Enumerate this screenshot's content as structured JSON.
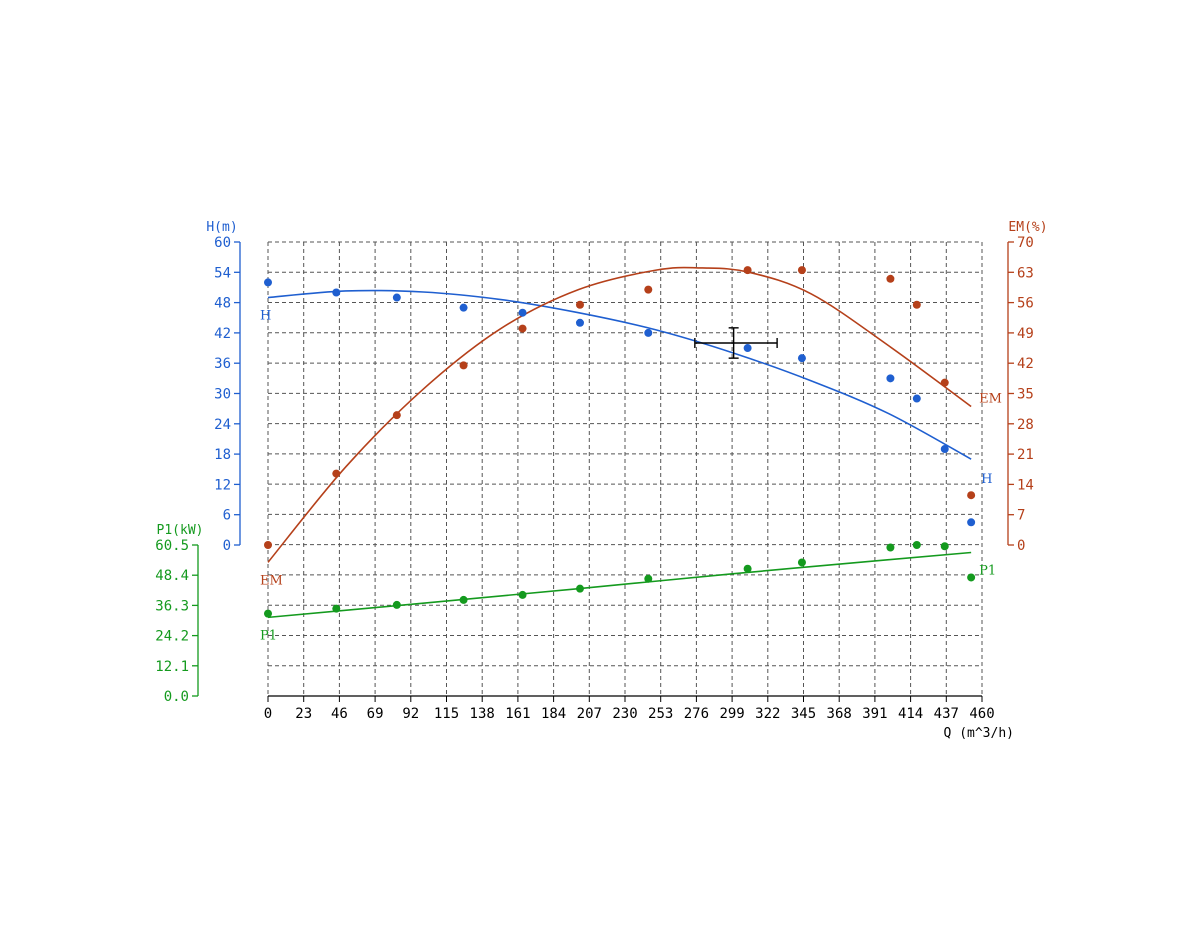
{
  "chart_data": {
    "type": "scatter",
    "grid": true,
    "x_axis": {
      "label": "Q (m^3/h)",
      "range": [
        0,
        460
      ],
      "ticks": [
        "0",
        "23",
        "46",
        "69",
        "92",
        "115",
        "138",
        "161",
        "184",
        "207",
        "230",
        "253",
        "276",
        "299",
        "322",
        "345",
        "368",
        "391",
        "414",
        "437",
        "460"
      ]
    },
    "y_axes": {
      "H": {
        "label": "H(m)",
        "range": [
          0,
          60
        ],
        "ticks": [
          "0",
          "6",
          "12",
          "18",
          "24",
          "30",
          "36",
          "42",
          "48",
          "54",
          "60"
        ],
        "color": "#1f5fd0"
      },
      "EM": {
        "label": "EM(%)",
        "range": [
          0,
          70
        ],
        "ticks": [
          "0",
          "7",
          "14",
          "21",
          "28",
          "35",
          "42",
          "49",
          "56",
          "63",
          "70"
        ],
        "color": "#b5401a"
      },
      "P1": {
        "label": "P1(kW)",
        "range": [
          0,
          60.5
        ],
        "ticks": [
          "0.0",
          "12.1",
          "24.2",
          "36.3",
          "48.4",
          "60.5"
        ],
        "color": "#149a1e"
      }
    },
    "series": [
      {
        "name": "H",
        "axis": "H",
        "color": "#1f5fd0",
        "points": [
          [
            0,
            52
          ],
          [
            44,
            50
          ],
          [
            83,
            49
          ],
          [
            126,
            47
          ],
          [
            164,
            46
          ],
          [
            201,
            44
          ],
          [
            245,
            42
          ],
          [
            309,
            39
          ],
          [
            344,
            37
          ],
          [
            401,
            33
          ],
          [
            418,
            29
          ],
          [
            436,
            19
          ],
          [
            453,
            4.5
          ]
        ],
        "fit": [
          [
            0,
            49
          ],
          [
            50,
            50.3
          ],
          [
            100,
            50.1
          ],
          [
            150,
            48.6
          ],
          [
            200,
            46
          ],
          [
            250,
            42.6
          ],
          [
            300,
            38
          ],
          [
            350,
            32.5
          ],
          [
            400,
            26
          ],
          [
            453,
            17
          ]
        ],
        "start_label": "H",
        "end_label": "H"
      },
      {
        "name": "EM",
        "axis": "EM",
        "color": "#b5401a",
        "points": [
          [
            0,
            0
          ],
          [
            44,
            16.5
          ],
          [
            83,
            30
          ],
          [
            126,
            41.5
          ],
          [
            164,
            50
          ],
          [
            201,
            55.5
          ],
          [
            245,
            59
          ],
          [
            309,
            63.5
          ],
          [
            344,
            63.5
          ],
          [
            401,
            61.5
          ],
          [
            418,
            55.5
          ],
          [
            436,
            37.5
          ],
          [
            453,
            11.5
          ]
        ],
        "fit": [
          [
            0,
            -4
          ],
          [
            50,
            18
          ],
          [
            100,
            36
          ],
          [
            150,
            50
          ],
          [
            200,
            59
          ],
          [
            250,
            63.5
          ],
          [
            280,
            64
          ],
          [
            310,
            63
          ],
          [
            350,
            58
          ],
          [
            400,
            46
          ],
          [
            453,
            32
          ]
        ],
        "start_label": "EM",
        "end_label": "EM"
      },
      {
        "name": "P1",
        "axis": "P1",
        "color": "#149a1e",
        "points": [
          [
            0,
            33
          ],
          [
            44,
            35
          ],
          [
            83,
            36.5
          ],
          [
            126,
            38.5
          ],
          [
            164,
            40.5
          ],
          [
            201,
            43
          ],
          [
            245,
            47
          ],
          [
            309,
            51
          ],
          [
            344,
            53.5
          ],
          [
            401,
            59.5
          ],
          [
            418,
            60.5
          ],
          [
            436,
            60
          ],
          [
            453,
            47.5
          ]
        ],
        "fit": [
          [
            0,
            31.5
          ],
          [
            100,
            37.2
          ],
          [
            200,
            43
          ],
          [
            300,
            49
          ],
          [
            400,
            54.6
          ],
          [
            453,
            57.5
          ]
        ],
        "start_label": "P1",
        "end_label": "P1"
      }
    ],
    "operating_point": {
      "q": 300,
      "h": 40,
      "q_range": [
        275,
        328
      ],
      "h_range": [
        37,
        43
      ]
    }
  }
}
